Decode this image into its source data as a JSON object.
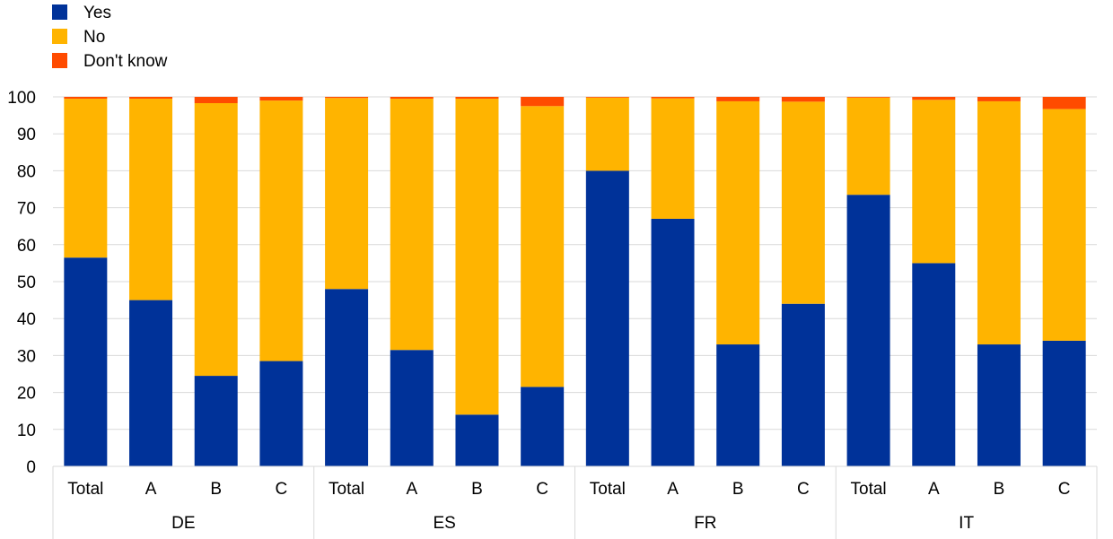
{
  "chart_data": {
    "type": "bar",
    "stacked": true,
    "groups": [
      "DE",
      "ES",
      "FR",
      "IT"
    ],
    "subcategories": [
      "Total",
      "A",
      "B",
      "C"
    ],
    "series": [
      {
        "name": "Yes",
        "color": "#003299",
        "values": [
          56.5,
          45,
          24.5,
          28.5,
          48,
          31.5,
          14,
          21.5,
          80,
          67,
          33,
          44,
          73.5,
          55,
          33,
          34
        ]
      },
      {
        "name": "No",
        "color": "#FFB400",
        "values": [
          43,
          54.5,
          73.8,
          70.5,
          51.7,
          68,
          85.5,
          76,
          19.8,
          32.6,
          65.8,
          54.7,
          26.3,
          44.2,
          65.8,
          62.7
        ]
      },
      {
        "name": "Don't know",
        "color": "#FF4B00",
        "values": [
          0.5,
          0.5,
          1.7,
          1,
          0.3,
          0.5,
          0.5,
          2.5,
          0.2,
          0.4,
          1.2,
          1.3,
          0.2,
          0.8,
          1.2,
          3.3
        ]
      }
    ],
    "ylim": [
      0,
      100
    ],
    "yticks": [
      0,
      10,
      20,
      30,
      40,
      50,
      60,
      70,
      80,
      90,
      100
    ],
    "grid": true,
    "legend_position": "top-left"
  }
}
